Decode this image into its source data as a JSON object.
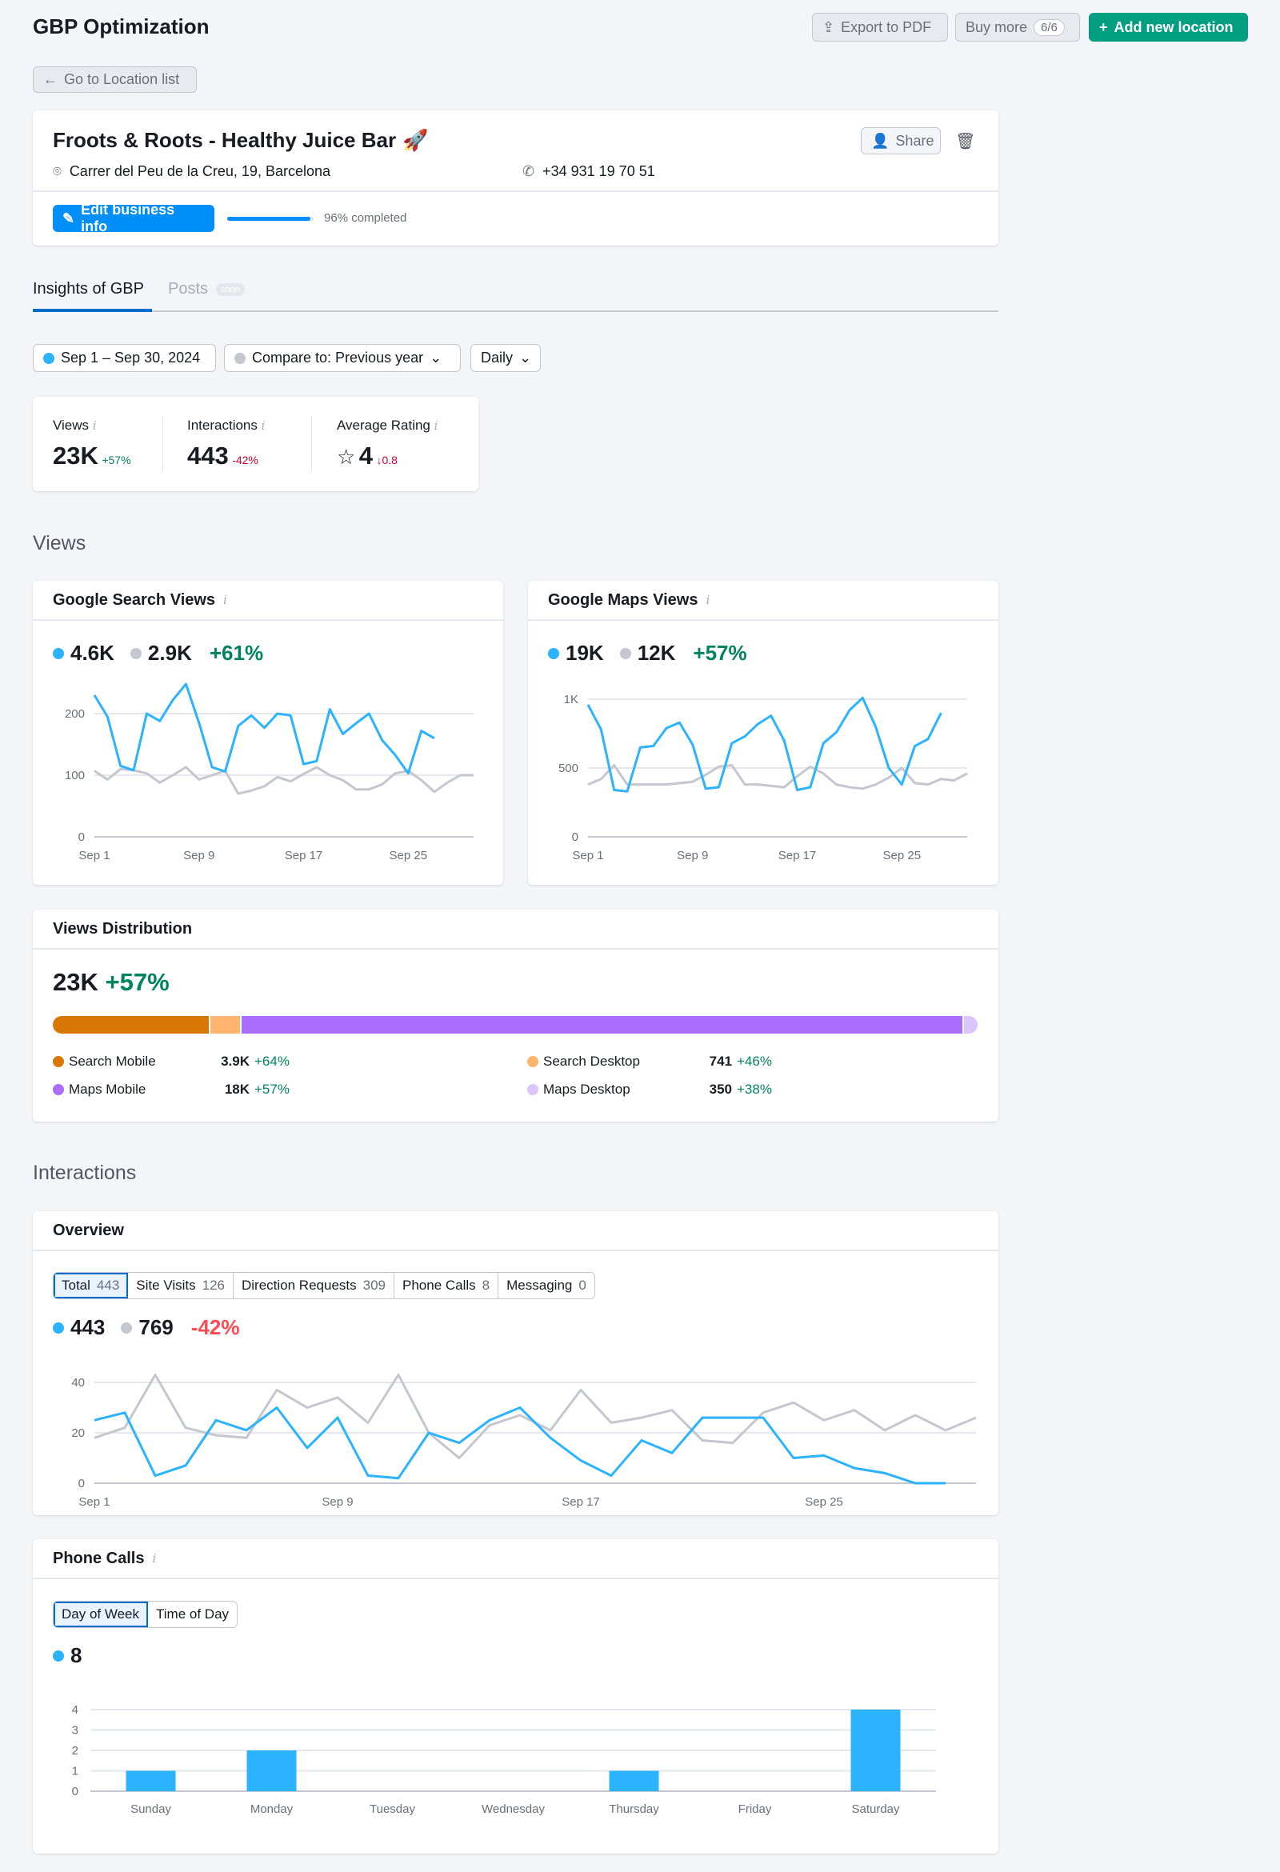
{
  "header": {
    "title": "GBP Optimization",
    "export_label": "Export to PDF",
    "buy_more_label": "Buy more",
    "buy_more_badge": "6/6",
    "add_location_label": "Add new location",
    "back_label": "Go to Location list"
  },
  "business": {
    "name": "Froots & Roots - Healthy Juice Bar",
    "emoji": "🚀",
    "address": "Carrer del Peu de la Creu, 19, Barcelona",
    "phone": "+34 931 19 70 51",
    "share_label": "Share",
    "edit_label": "Edit business info",
    "completion_text": "96% completed",
    "completion_percent": 96
  },
  "tabs": [
    {
      "label": "Insights of GBP",
      "active": true
    },
    {
      "label": "Posts",
      "badge": "soon"
    }
  ],
  "filters": {
    "date_range": "Sep 1 – Sep 30, 2024",
    "compare": "Compare to: Previous year",
    "granularity": "Daily"
  },
  "kpis": [
    {
      "label": "Views",
      "value": "23K",
      "delta": "+57%"
    },
    {
      "label": "Interactions",
      "value": "443",
      "delta": "-42%"
    },
    {
      "label": "Average Rating",
      "value": "4",
      "delta": "↓0.8"
    }
  ],
  "colors": {
    "current": "#2bb3ff",
    "previous": "#c4c7cf",
    "positive": "#00845e",
    "negative": "#ff4953",
    "search_mobile": "#d97706",
    "search_desktop": "#ffb470",
    "maps_mobile": "#a96efe",
    "maps_desktop": "#dcc4ff"
  },
  "sections": {
    "views": "Views",
    "interactions": "Interactions"
  },
  "chart_data": [
    {
      "type": "line",
      "title": "Google Search Views",
      "current_total": "4.6K",
      "previous_total": "2.9K",
      "delta": "+61%",
      "x_ticks": [
        "Sep 1",
        "Sep 9",
        "Sep 17",
        "Sep 25"
      ],
      "y_ticks": [
        "0",
        "100",
        "200"
      ],
      "ylim": [
        0,
        250
      ],
      "grid": true,
      "series": [
        {
          "values": [
            230,
            195,
            115,
            108,
            200,
            188,
            222,
            248,
            185,
            113,
            106,
            180,
            197,
            177,
            200,
            197,
            118,
            123,
            207,
            167,
            184,
            200,
            157,
            133,
            103,
            172,
            160
          ]
        },
        {
          "values": [
            107,
            93,
            110,
            108,
            103,
            88,
            100,
            113,
            93,
            100,
            107,
            70,
            75,
            82,
            97,
            90,
            102,
            113,
            100,
            92,
            77,
            77,
            85,
            103,
            107,
            92,
            73,
            88,
            100,
            100
          ]
        }
      ]
    },
    {
      "type": "line",
      "title": "Google Maps Views",
      "current_total": "19K",
      "previous_total": "12K",
      "delta": "+57%",
      "x_ticks": [
        "Sep 1",
        "Sep 9",
        "Sep 17",
        "Sep 25"
      ],
      "y_ticks": [
        "0",
        "500",
        "1K"
      ],
      "ylim": [
        0,
        1100
      ],
      "grid": true,
      "series": [
        {
          "values": [
            960,
            780,
            340,
            330,
            650,
            660,
            790,
            830,
            670,
            350,
            360,
            680,
            730,
            820,
            880,
            700,
            340,
            360,
            680,
            760,
            920,
            1010,
            800,
            500,
            380,
            660,
            710,
            900
          ]
        },
        {
          "values": [
            380,
            420,
            520,
            380,
            380,
            380,
            380,
            390,
            400,
            450,
            510,
            520,
            380,
            380,
            370,
            360,
            440,
            510,
            460,
            380,
            360,
            350,
            380,
            430,
            500,
            390,
            380,
            420,
            410,
            460
          ]
        }
      ]
    },
    {
      "type": "bar",
      "title": "Views Distribution",
      "total": "23K",
      "delta": "+57%",
      "items": [
        {
          "label": "Search Mobile",
          "display": "3.9K",
          "value": 3900,
          "delta": "+64%"
        },
        {
          "label": "Search Desktop",
          "display": "741",
          "value": 741,
          "delta": "+46%"
        },
        {
          "label": "Maps Mobile",
          "display": "18K",
          "value": 18000,
          "delta": "+57%"
        },
        {
          "label": "Maps Desktop",
          "display": "350",
          "value": 350,
          "delta": "+38%"
        }
      ]
    },
    {
      "type": "line",
      "title": "Overview",
      "current_total": "443",
      "previous_total": "769",
      "delta": "-42%",
      "x_ticks": [
        "Sep 1",
        "Sep 9",
        "Sep 17",
        "Sep 25"
      ],
      "y_ticks": [
        "0",
        "20",
        "40"
      ],
      "ylim": [
        0,
        40
      ],
      "grid": true,
      "series": [
        {
          "values": [
            25,
            28,
            3,
            7,
            25,
            21,
            30,
            14,
            26,
            3,
            2,
            20,
            16,
            25,
            30,
            18,
            9,
            3,
            17,
            12,
            26,
            26,
            26,
            10,
            11,
            6,
            4,
            0,
            0
          ]
        },
        {
          "values": [
            18,
            22,
            43,
            22,
            19,
            18,
            37,
            30,
            34,
            24,
            43,
            20,
            10,
            23,
            27,
            21,
            37,
            24,
            26,
            29,
            17,
            16,
            28,
            32,
            25,
            29,
            21,
            27,
            21,
            26
          ]
        }
      ]
    },
    {
      "type": "bar",
      "title": "Phone Calls",
      "total": "8",
      "categories": [
        "Sunday",
        "Monday",
        "Tuesday",
        "Wednesday",
        "Thursday",
        "Friday",
        "Saturday"
      ],
      "values": [
        1,
        2,
        0,
        0,
        1,
        0,
        4
      ],
      "y_ticks": [
        "0",
        "1",
        "2",
        "3",
        "4"
      ],
      "ylim": [
        0,
        4
      ],
      "grid": true
    }
  ],
  "overview_tabs": [
    {
      "label": "Total",
      "count": "443",
      "active": true
    },
    {
      "label": "Site Visits",
      "count": "126"
    },
    {
      "label": "Direction Requests",
      "count": "309"
    },
    {
      "label": "Phone Calls",
      "count": "8"
    },
    {
      "label": "Messaging",
      "count": "0"
    }
  ],
  "phone_tabs": [
    {
      "label": "Day of Week",
      "active": true
    },
    {
      "label": "Time of Day"
    }
  ]
}
